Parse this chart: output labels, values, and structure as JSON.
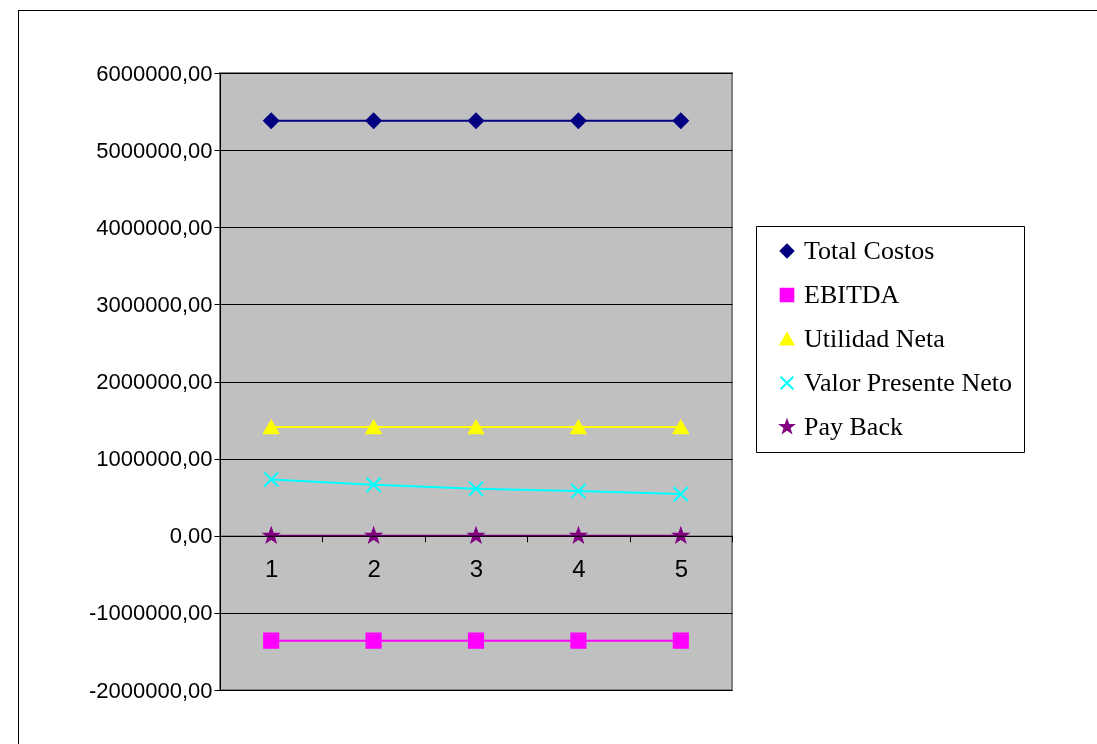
{
  "chart_data": {
    "type": "line",
    "categories": [
      "1",
      "2",
      "3",
      "4",
      "5"
    ],
    "series": [
      {
        "name": "Total Costos",
        "color": "#000080",
        "marker": "diamond",
        "values": [
          5380000,
          5380000,
          5380000,
          5380000,
          5380000
        ]
      },
      {
        "name": "EBITDA",
        "color": "#ff00ff",
        "marker": "square",
        "values": [
          -1360000,
          -1360000,
          -1360000,
          -1360000,
          -1360000
        ]
      },
      {
        "name": "Utilidad Neta",
        "color": "#ffff00",
        "marker": "triangle",
        "values": [
          1410000,
          1410000,
          1410000,
          1410000,
          1410000
        ]
      },
      {
        "name": "Valor Presente Neto",
        "color": "#00ffff",
        "marker": "cross",
        "values": [
          730000,
          660000,
          610000,
          580000,
          540000
        ]
      },
      {
        "name": "Pay Back",
        "color": "#800080",
        "marker": "star",
        "values": [
          0,
          0,
          0,
          0,
          0
        ]
      }
    ],
    "ylim": [
      -2000000,
      6000000
    ],
    "yticks": [
      {
        "value": -2000000,
        "label": "-2000000,00"
      },
      {
        "value": -1000000,
        "label": "-1000000,00"
      },
      {
        "value": 0,
        "label": "0,00"
      },
      {
        "value": 1000000,
        "label": "1000000,00"
      },
      {
        "value": 2000000,
        "label": "2000000,00"
      },
      {
        "value": 3000000,
        "label": "3000000,00"
      },
      {
        "value": 4000000,
        "label": "4000000,00"
      },
      {
        "value": 5000000,
        "label": "5000000,00"
      },
      {
        "value": 6000000,
        "label": "6000000,00"
      }
    ],
    "grid": "y",
    "legend": "right",
    "line_style": "solid"
  }
}
